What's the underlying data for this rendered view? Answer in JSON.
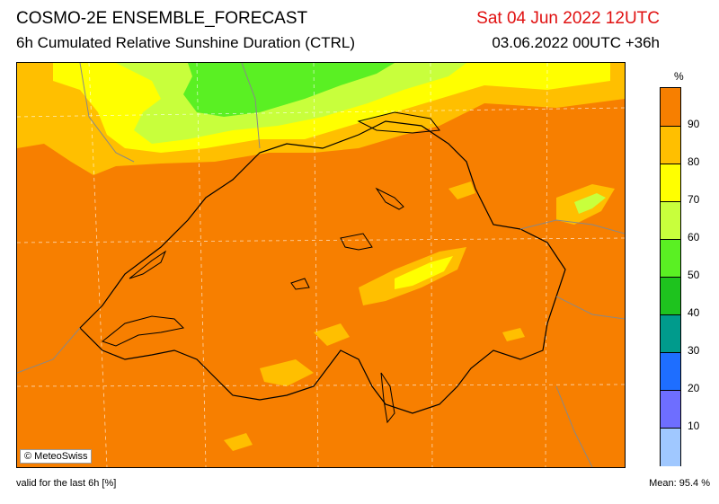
{
  "header": {
    "title": "COSMO-2E ENSEMBLE_FORECAST",
    "subtitle": "6h Cumulated Relative Sunshine Duration (CTRL)",
    "valid_date": "Sat 04 Jun 2022 12UTC",
    "run_info": "03.06.2022 00UTC +36h"
  },
  "map": {
    "credit": "© MeteoSwiss",
    "colors": {
      "background_90_100": "#f77f00",
      "c80_90": "#ffbf00",
      "c70_80": "#ffff00",
      "c60_70": "#c8ff3c",
      "c50_60": "#5af023"
    }
  },
  "legend": {
    "unit": "%",
    "labels": [
      "90",
      "80",
      "70",
      "60",
      "50",
      "40",
      "30",
      "20",
      "10"
    ],
    "colors": [
      "#f77f00",
      "#ffbf00",
      "#ffff00",
      "#c8ff3c",
      "#5af023",
      "#1ec31e",
      "#009b8c",
      "#1e6eff",
      "#6e6eff",
      "#a0c8ff"
    ]
  },
  "footer": {
    "validity": "valid for the last 6h [%]",
    "mean": "Mean:  95.4 %"
  }
}
